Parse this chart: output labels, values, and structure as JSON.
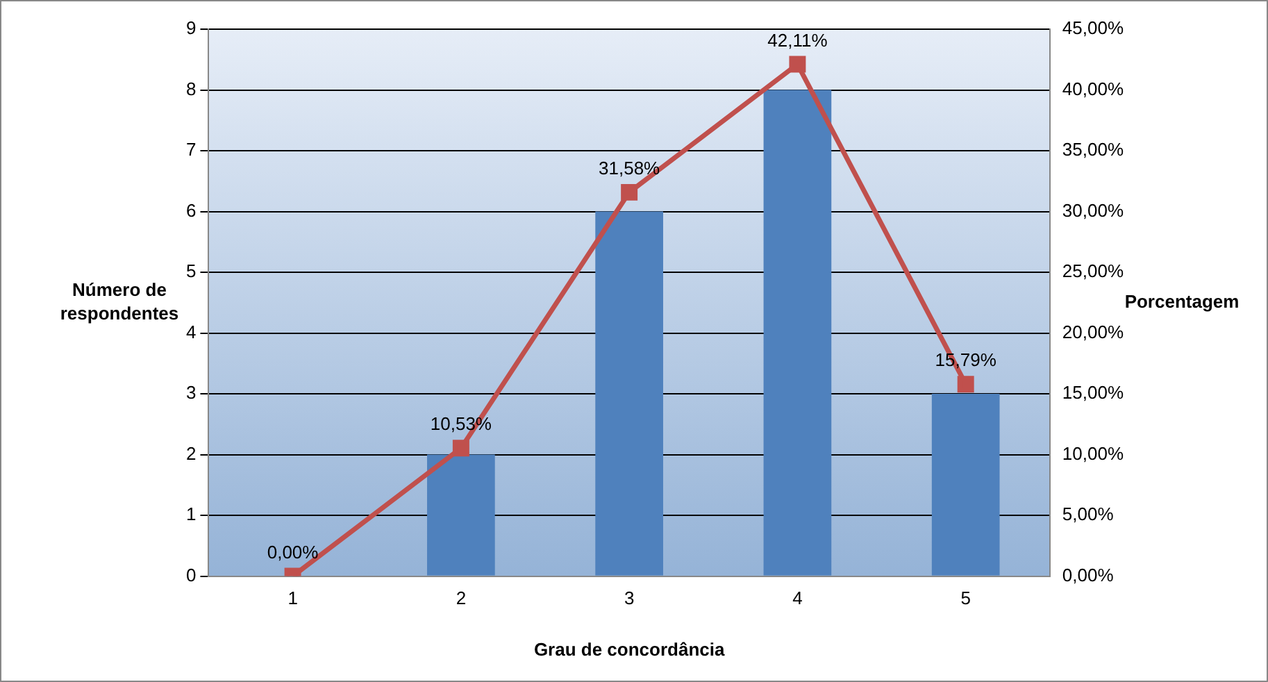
{
  "chart_data": {
    "type": "bar",
    "xlabel": "Grau de concordância",
    "ylabel": "Número de respondentes",
    "y2label": "Porcentagem",
    "categories": [
      "1",
      "2",
      "3",
      "4",
      "5"
    ],
    "series": [
      {
        "color": "#4f81bd",
        "values": [
          0,
          2,
          6,
          8,
          3
        ]
      },
      {
        "type": "line",
        "axis": "y2",
        "color": "#c0504d",
        "marker": "square",
        "values": [
          0,
          10.53,
          31.58,
          42.11,
          15.79
        ],
        "value_labels": [
          "0,00%",
          "10,53%",
          "31,58%",
          "42,11%",
          "15,79%"
        ]
      }
    ],
    "ylim": [
      0,
      9
    ],
    "yticks": [
      0,
      1,
      2,
      3,
      4,
      5,
      6,
      7,
      8,
      9
    ],
    "y2lim": [
      0,
      45
    ],
    "y2ticks": [
      {
        "value": 0,
        "label": "0,00%"
      },
      {
        "value": 5,
        "label": "5,00%"
      },
      {
        "value": 10,
        "label": "10,00%"
      },
      {
        "value": 15,
        "label": "15,00%"
      },
      {
        "value": 20,
        "label": "20,00%"
      },
      {
        "value": 25,
        "label": "25,00%"
      },
      {
        "value": 30,
        "label": "30,00%"
      },
      {
        "value": 35,
        "label": "35,00%"
      },
      {
        "value": 40,
        "label": "40,00%"
      },
      {
        "value": 45,
        "label": "45,00%"
      }
    ],
    "grid": "y",
    "legend": false
  }
}
